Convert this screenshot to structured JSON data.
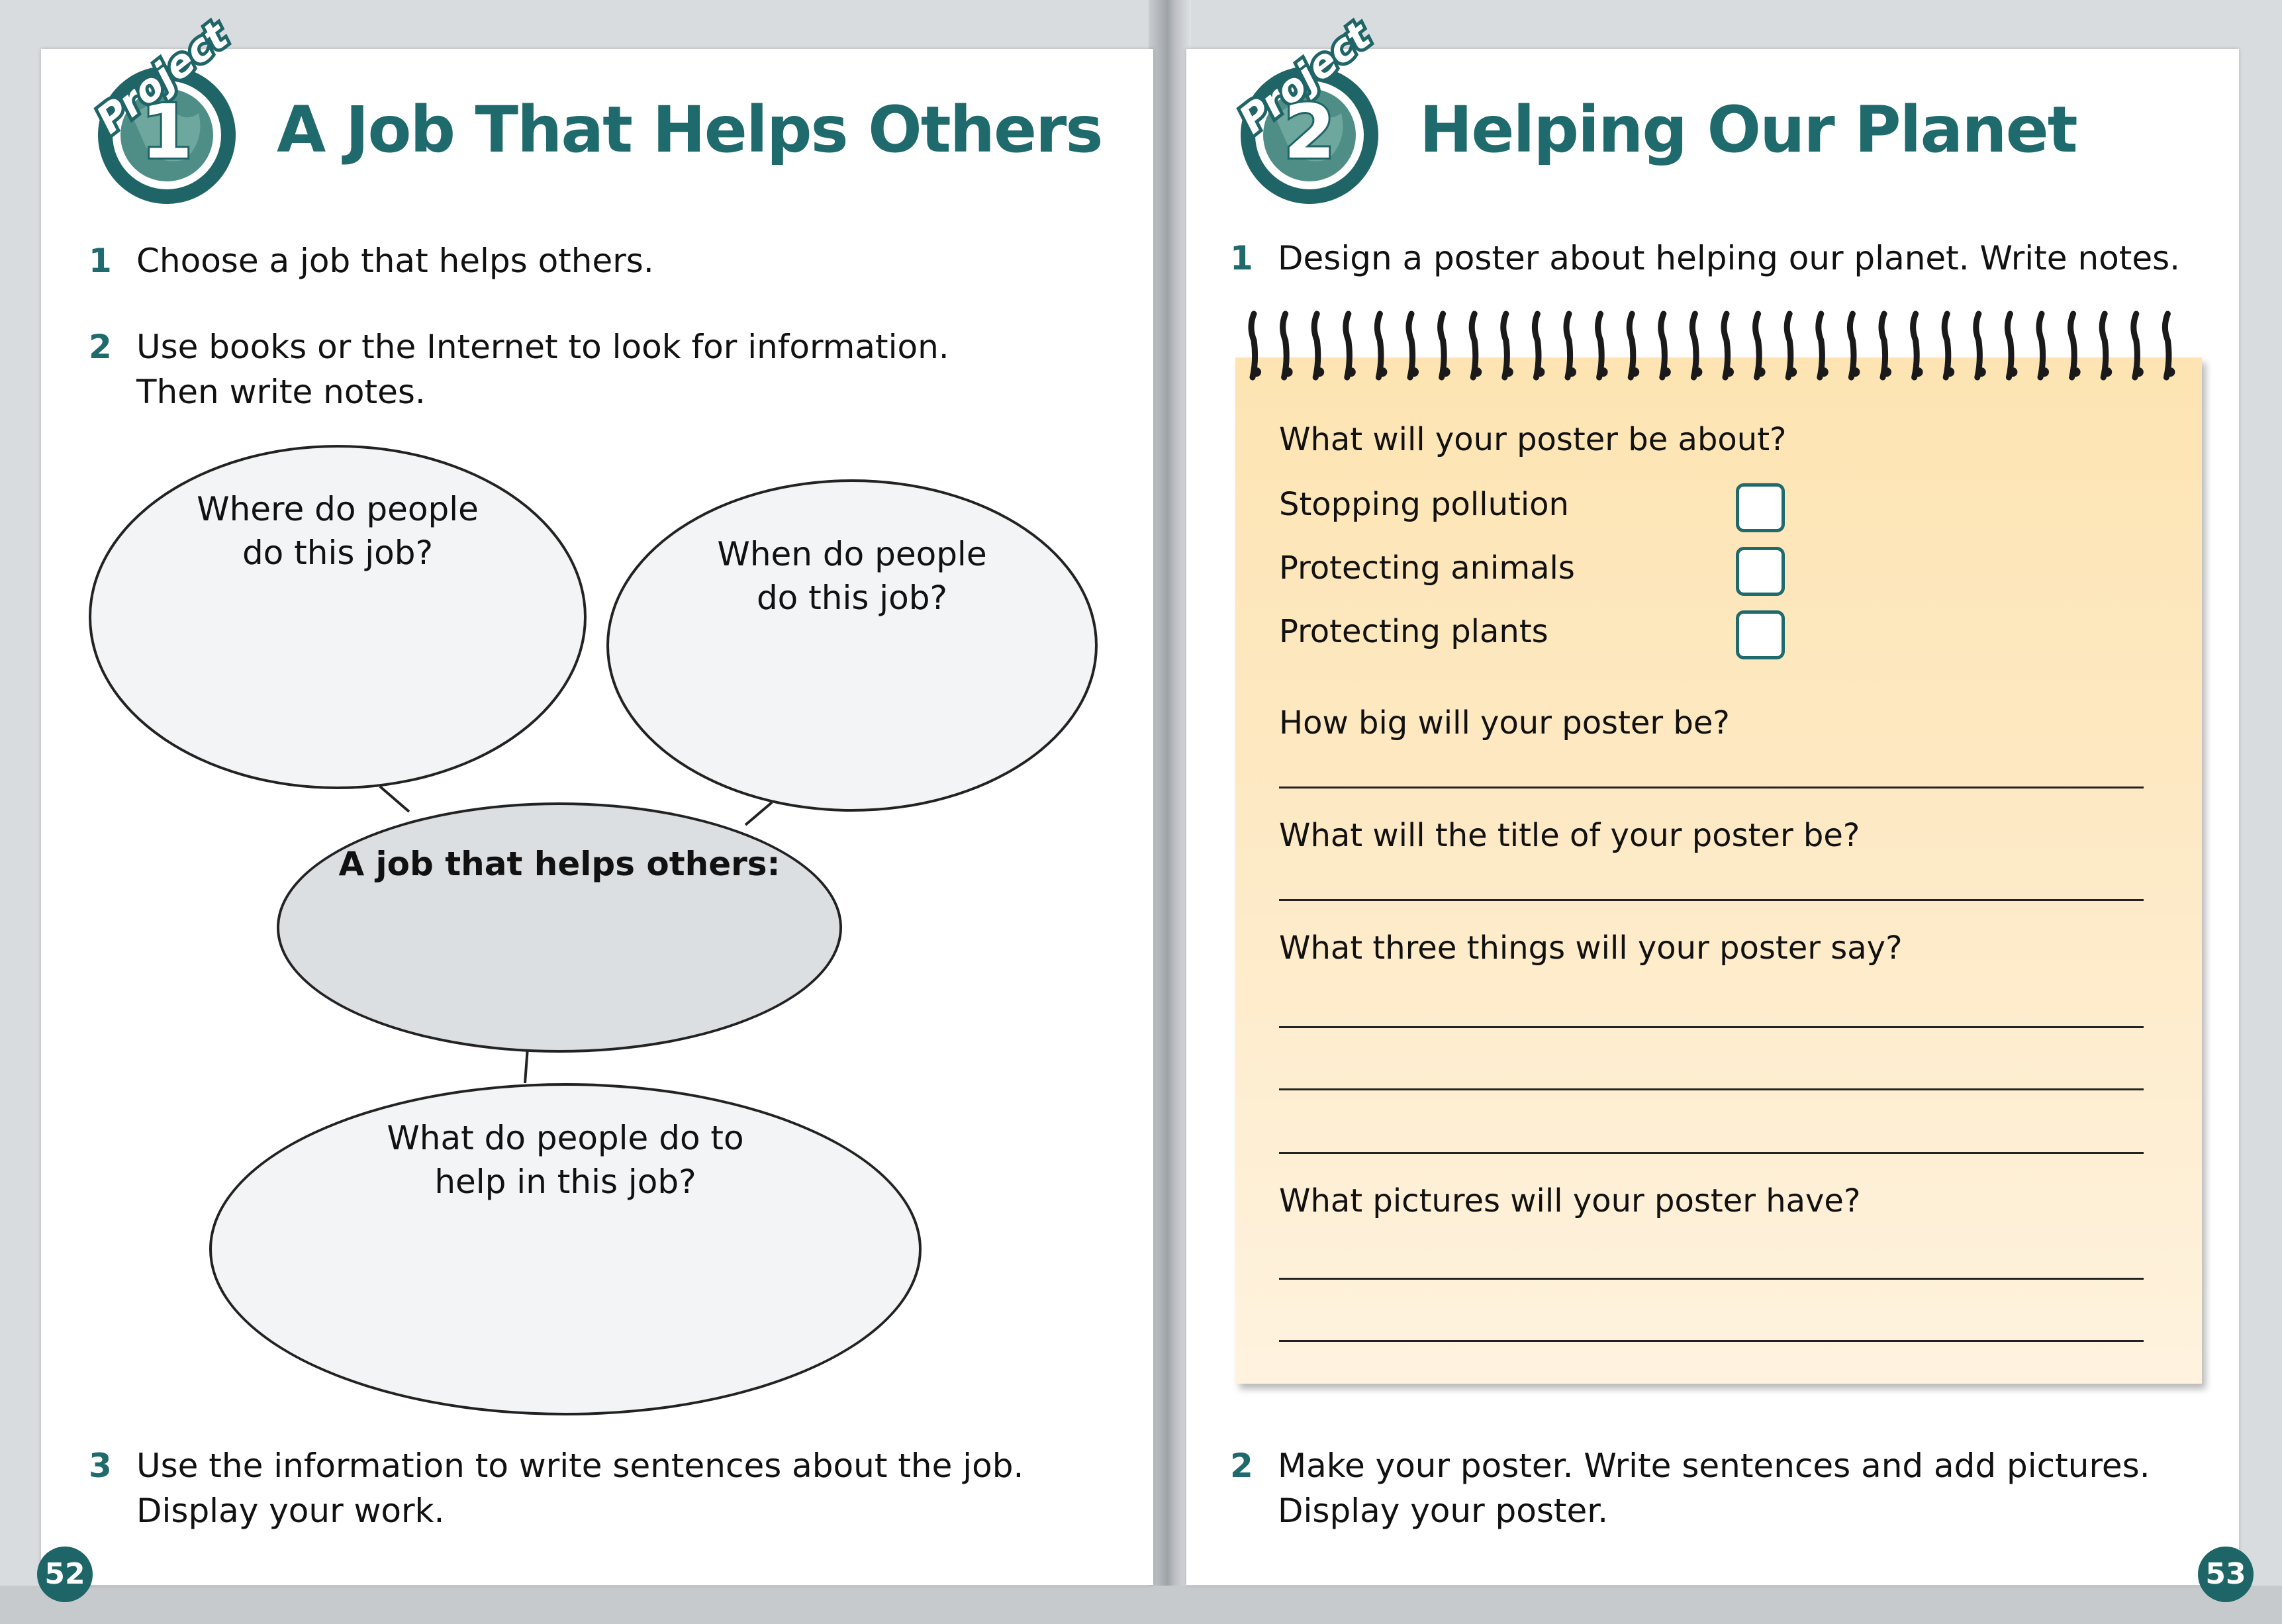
{
  "left_page": {
    "badge": {
      "label": "Project",
      "number": "1"
    },
    "title": "A Job That Helps Others",
    "steps": [
      {
        "num": "1",
        "text": "Choose a job that helps others."
      },
      {
        "num": "2",
        "text": "Use books or the Internet to look for information.",
        "text2": "Then write notes."
      },
      {
        "num": "3",
        "text": "Use the information to write sentences about the job.",
        "text2": "Display your work."
      }
    ],
    "diagram": {
      "top_left": [
        "Where do people",
        "do this job?"
      ],
      "top_right": [
        "When do people",
        "do this job?"
      ],
      "center": "A job that helps others:",
      "bottom": [
        "What do people do to",
        "help in this job?"
      ]
    },
    "page_number": "52"
  },
  "right_page": {
    "badge": {
      "label": "Project",
      "number": "2"
    },
    "title": "Helping Our Planet",
    "steps": [
      {
        "num": "1",
        "text": "Design a poster about helping our planet. Write notes."
      },
      {
        "num": "2",
        "text": "Make your poster. Write sentences and add pictures.",
        "text2": "Display your poster."
      }
    ],
    "notepad": {
      "q_about": "What will your poster be about?",
      "options": [
        "Stopping pollution",
        "Protecting animals",
        "Protecting plants"
      ],
      "q_size": "How big will your poster be?",
      "q_title": "What will the title of your poster be?",
      "q_things": "What three things will your poster say?",
      "q_pictures": "What pictures will your poster have?"
    },
    "page_number": "53"
  },
  "colors": {
    "teal": "#1f6a6c",
    "notepad": "#fde4b2"
  }
}
